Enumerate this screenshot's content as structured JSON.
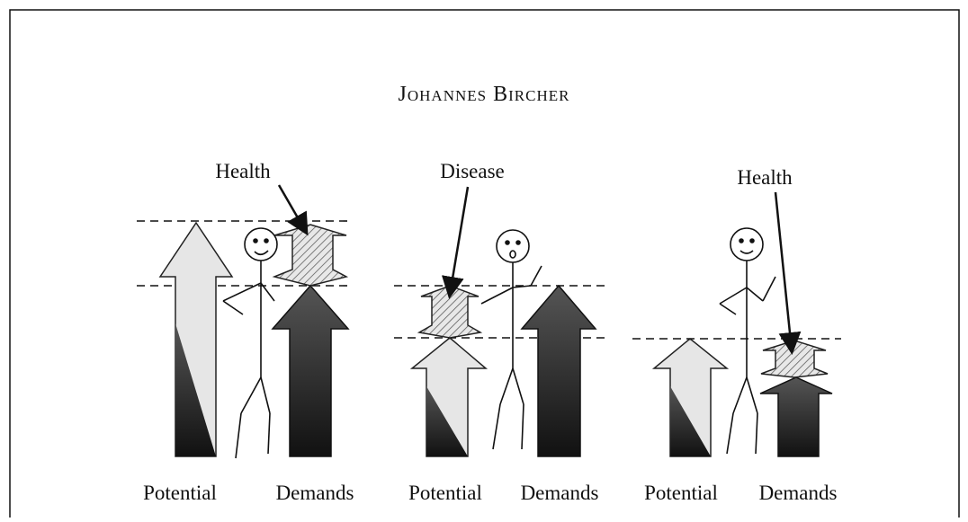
{
  "header": {
    "title": "Johannes Bircher"
  },
  "panels": [
    {
      "annotation": "Health",
      "labels": [
        "Potential",
        "Demands"
      ]
    },
    {
      "annotation": "Disease",
      "labels": [
        "Potential",
        "Demands"
      ]
    },
    {
      "annotation": "Health",
      "labels": [
        "Potential",
        "Demands"
      ]
    }
  ]
}
